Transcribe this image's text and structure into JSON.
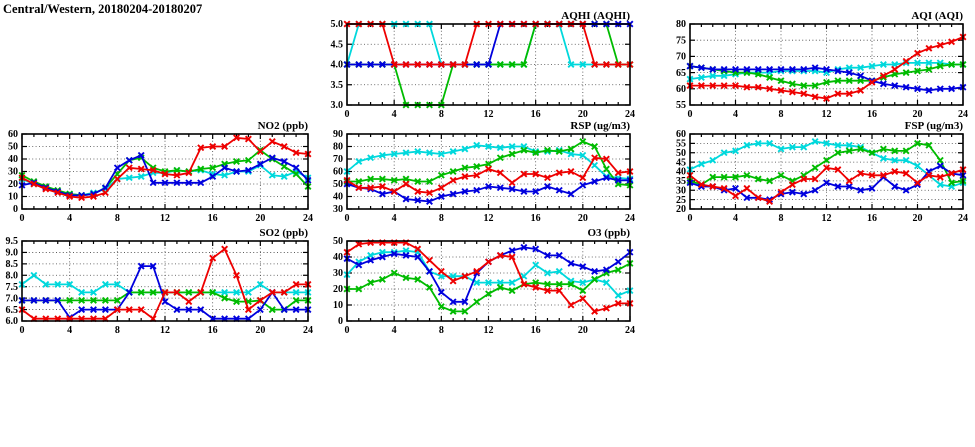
{
  "page_title": "Central/Western, 20180204-20180207",
  "series_colors": {
    "red": "#ee0000",
    "green": "#00bb00",
    "blue": "#0000dd",
    "cyan": "#00d8dc"
  },
  "chart_data": [
    {
      "id": "aqhi",
      "type": "line",
      "title": "AQHI (AQHI)",
      "xlim": [
        0,
        24
      ],
      "ylim": [
        3.0,
        5.0
      ],
      "x_start": 0,
      "x_step": 1,
      "grid": true,
      "legend": "none",
      "xticks": [
        "0",
        "4",
        "8",
        "12",
        "16",
        "20",
        "24"
      ],
      "xtick_values": [
        0,
        4,
        8,
        12,
        16,
        20,
        24
      ],
      "yticks": [
        "3.0",
        "3.5",
        "4.0",
        "4.5",
        "5.0"
      ],
      "ytick_values": [
        3.0,
        3.5,
        4.0,
        4.5,
        5.0
      ],
      "series": [
        {
          "name": "cyan",
          "values": [
            4,
            5,
            5,
            5,
            5,
            5,
            5,
            5,
            4,
            4,
            4,
            4,
            4,
            4,
            4,
            4,
            5,
            5,
            5,
            4,
            4,
            4,
            4,
            4,
            4
          ]
        },
        {
          "name": "green",
          "values": [
            4,
            4,
            4,
            4,
            4,
            3,
            3,
            3,
            3,
            4,
            4,
            4,
            4,
            4,
            4,
            4,
            5,
            5,
            5,
            5,
            5,
            5,
            5,
            4,
            4
          ]
        },
        {
          "name": "blue",
          "values": [
            4,
            4,
            4,
            4,
            4,
            4,
            4,
            4,
            4,
            4,
            4,
            4,
            4,
            5,
            5,
            5,
            5,
            5,
            5,
            5,
            5,
            5,
            5,
            5,
            5
          ]
        },
        {
          "name": "red",
          "values": [
            5,
            5,
            5,
            5,
            4,
            4,
            4,
            4,
            4,
            4,
            4,
            5,
            5,
            5,
            5,
            5,
            5,
            5,
            5,
            5,
            5,
            4,
            4,
            4,
            4
          ]
        }
      ]
    },
    {
      "id": "aqi",
      "type": "line",
      "title": "AQI (AQI)",
      "xlim": [
        0,
        24
      ],
      "ylim": [
        55,
        80
      ],
      "x_start": 0,
      "x_step": 1,
      "grid": true,
      "legend": "none",
      "xticks": [
        "0",
        "4",
        "8",
        "12",
        "16",
        "20",
        "24"
      ],
      "xtick_values": [
        0,
        4,
        8,
        12,
        16,
        20,
        24
      ],
      "yticks": [
        "55",
        "60",
        "65",
        "70",
        "75",
        "80"
      ],
      "ytick_values": [
        55,
        60,
        65,
        70,
        75,
        80
      ],
      "series": [
        {
          "name": "cyan",
          "values": [
            63,
            63.5,
            64,
            64,
            64.5,
            65,
            65,
            65,
            65.5,
            65.5,
            65.5,
            65.5,
            65,
            66,
            66.5,
            66.5,
            67,
            67.5,
            67.5,
            68,
            68,
            68,
            68,
            67.5,
            67.5
          ]
        },
        {
          "name": "green",
          "values": [
            67,
            66.5,
            66,
            65.5,
            65,
            65,
            64.5,
            63.5,
            62.5,
            61.5,
            61,
            61,
            62,
            62.5,
            62.5,
            62.5,
            62.5,
            63.5,
            64.5,
            65,
            65.5,
            66,
            67,
            67.5,
            67.5
          ]
        },
        {
          "name": "blue",
          "values": [
            67,
            66.5,
            66,
            66,
            66,
            66,
            66,
            66,
            66,
            66,
            66,
            66.5,
            66,
            65.5,
            65,
            64,
            62.5,
            61.5,
            61,
            60.5,
            60,
            59.5,
            60,
            60,
            60.5
          ]
        },
        {
          "name": "red",
          "values": [
            61,
            61,
            61,
            61,
            61,
            60.5,
            60.5,
            60,
            59.5,
            59,
            58.5,
            57.5,
            57,
            58.5,
            58.5,
            59.5,
            62,
            64,
            66,
            68.5,
            71,
            72.5,
            73.5,
            74.5,
            76
          ]
        }
      ]
    },
    {
      "id": "no2",
      "type": "line",
      "title": "NO2 (ppb)",
      "xlim": [
        0,
        24
      ],
      "ylim": [
        0,
        60
      ],
      "x_start": 0,
      "x_step": 1,
      "grid": true,
      "legend": "none",
      "xticks": [
        "0",
        "4",
        "8",
        "12",
        "16",
        "20",
        "24"
      ],
      "xtick_values": [
        0,
        4,
        8,
        12,
        16,
        20,
        24
      ],
      "yticks": [
        "0",
        "10",
        "20",
        "30",
        "40",
        "50",
        "60"
      ],
      "ytick_values": [
        0,
        10,
        20,
        30,
        40,
        50,
        60
      ],
      "series": [
        {
          "name": "cyan",
          "values": [
            24,
            20,
            17,
            14,
            12,
            11,
            13,
            16,
            24,
            25,
            26,
            29,
            29,
            31,
            30,
            31,
            28,
            27,
            30,
            30,
            35,
            27,
            26,
            30,
            25
          ]
        },
        {
          "name": "green",
          "values": [
            27,
            22,
            18,
            15,
            12,
            11,
            12,
            17,
            28,
            39,
            41,
            33,
            30,
            31,
            30,
            32,
            33,
            36,
            38,
            39,
            47,
            40,
            34,
            28,
            18
          ]
        },
        {
          "name": "blue",
          "values": [
            19,
            21,
            17,
            14,
            11,
            11,
            12,
            17,
            33,
            39,
            43,
            21,
            21,
            21,
            21,
            21,
            26,
            33,
            30,
            31,
            36,
            41,
            38,
            33,
            23
          ]
        },
        {
          "name": "red",
          "values": [
            25,
            20,
            16,
            13,
            10,
            9,
            10,
            13,
            24,
            33,
            32,
            31,
            28,
            27,
            29,
            49,
            50,
            50,
            57,
            56,
            46,
            54,
            50,
            45,
            44
          ]
        }
      ]
    },
    {
      "id": "rsp",
      "type": "line",
      "title": "RSP (ug/m3)",
      "xlim": [
        0,
        24
      ],
      "ylim": [
        30,
        90
      ],
      "x_start": 0,
      "x_step": 1,
      "grid": true,
      "legend": "none",
      "xticks": [
        "0",
        "4",
        "8",
        "12",
        "16",
        "20",
        "24"
      ],
      "xtick_values": [
        0,
        4,
        8,
        12,
        16,
        20,
        24
      ],
      "yticks": [
        "30",
        "40",
        "50",
        "60",
        "70",
        "80",
        "90"
      ],
      "ytick_values": [
        30,
        40,
        50,
        60,
        70,
        80,
        90
      ],
      "series": [
        {
          "name": "cyan",
          "values": [
            60,
            68,
            71,
            73,
            74,
            75,
            76,
            75,
            74,
            76,
            78,
            81,
            80,
            79,
            80,
            80,
            76,
            76,
            77,
            74,
            73,
            65,
            56,
            55,
            54
          ]
        },
        {
          "name": "green",
          "values": [
            52,
            52,
            54,
            54,
            53,
            54,
            52,
            52,
            57,
            60,
            63,
            64,
            66,
            71,
            74,
            77,
            75,
            77,
            76,
            78,
            84,
            80,
            62,
            50,
            49
          ]
        },
        {
          "name": "blue",
          "values": [
            50,
            47,
            46,
            42,
            44,
            38,
            37,
            36,
            40,
            42,
            44,
            45,
            48,
            47,
            46,
            44,
            44,
            48,
            45,
            42,
            49,
            52,
            55,
            53,
            53
          ]
        },
        {
          "name": "red",
          "values": [
            53,
            47,
            47,
            48,
            44,
            50,
            44,
            43,
            47,
            53,
            56,
            57,
            62,
            59,
            51,
            58,
            58,
            55,
            59,
            60,
            55,
            71,
            70,
            59,
            60
          ]
        }
      ]
    },
    {
      "id": "fsp",
      "type": "line",
      "title": "FSP (ug/m3)",
      "xlim": [
        0,
        24
      ],
      "ylim": [
        20,
        60
      ],
      "x_start": 0,
      "x_step": 1,
      "grid": true,
      "legend": "none",
      "xticks": [
        "0",
        "4",
        "8",
        "12",
        "16",
        "20",
        "24"
      ],
      "xtick_values": [
        0,
        4,
        8,
        12,
        16,
        20,
        24
      ],
      "yticks": [
        "20",
        "25",
        "30",
        "35",
        "40",
        "45",
        "50",
        "55",
        "60"
      ],
      "ytick_values": [
        20,
        25,
        30,
        35,
        40,
        45,
        50,
        55,
        60
      ],
      "series": [
        {
          "name": "cyan",
          "values": [
            41,
            44,
            46,
            50,
            51,
            54,
            55,
            55,
            52,
            53,
            53,
            56,
            55,
            54,
            54,
            53,
            50,
            47,
            46,
            46,
            43,
            38,
            33,
            32,
            34
          ]
        },
        {
          "name": "green",
          "values": [
            35,
            33,
            37,
            37,
            37,
            38,
            36,
            35,
            38,
            35,
            38,
            42,
            46,
            50,
            51,
            52,
            50,
            52,
            51,
            51,
            55,
            54,
            46,
            34,
            35
          ]
        },
        {
          "name": "blue",
          "values": [
            34,
            32,
            32,
            30,
            31,
            26,
            26,
            25,
            28,
            29,
            28,
            30,
            34,
            32,
            32,
            30,
            31,
            37,
            32,
            30,
            33,
            40,
            43,
            39,
            38
          ]
        },
        {
          "name": "red",
          "values": [
            38,
            33,
            32,
            31,
            27,
            31,
            26,
            24,
            29,
            33,
            36,
            36,
            42,
            41,
            35,
            39,
            38,
            38,
            40,
            39,
            34,
            38,
            37,
            39,
            41
          ]
        }
      ]
    },
    {
      "id": "so2",
      "type": "line",
      "title": "SO2 (ppb)",
      "xlim": [
        0,
        24
      ],
      "ylim": [
        6.0,
        9.5
      ],
      "x_start": 0,
      "x_step": 1,
      "grid": true,
      "legend": "none",
      "xticks": [
        "0",
        "4",
        "8",
        "12",
        "16",
        "20",
        "24"
      ],
      "xtick_values": [
        0,
        4,
        8,
        12,
        16,
        20,
        24
      ],
      "yticks": [
        "6.0",
        "6.5",
        "7.0",
        "7.5",
        "8.0",
        "8.5",
        "9.0",
        "9.5"
      ],
      "ytick_values": [
        6.0,
        6.5,
        7.0,
        7.5,
        8.0,
        8.5,
        9.0,
        9.5
      ],
      "series": [
        {
          "name": "cyan",
          "values": [
            7.6,
            8.0,
            7.6,
            7.6,
            7.6,
            7.25,
            7.25,
            7.6,
            7.6,
            7.25,
            7.25,
            7.25,
            7.25,
            7.25,
            7.25,
            7.25,
            7.25,
            7.25,
            7.25,
            7.25,
            7.6,
            7.25,
            7.25,
            7.25,
            7.25
          ]
        },
        {
          "name": "green",
          "values": [
            6.9,
            6.9,
            6.9,
            6.9,
            6.9,
            6.9,
            6.9,
            6.9,
            6.9,
            7.25,
            7.25,
            7.25,
            7.25,
            7.25,
            7.25,
            7.25,
            7.25,
            7.0,
            6.85,
            6.85,
            6.9,
            6.5,
            6.5,
            6.9,
            6.9
          ]
        },
        {
          "name": "blue",
          "values": [
            6.9,
            6.9,
            6.9,
            6.9,
            6.15,
            6.5,
            6.5,
            6.5,
            6.5,
            7.25,
            8.4,
            8.4,
            6.85,
            6.5,
            6.5,
            6.5,
            6.1,
            6.1,
            6.1,
            6.1,
            6.5,
            7.25,
            6.5,
            6.5,
            6.5
          ]
        },
        {
          "name": "red",
          "values": [
            6.5,
            6.1,
            6.1,
            6.1,
            6.1,
            6.1,
            6.1,
            6.1,
            6.5,
            6.5,
            6.5,
            6.1,
            7.25,
            7.25,
            6.85,
            7.25,
            8.75,
            9.15,
            8.0,
            6.5,
            6.9,
            7.25,
            7.25,
            7.6,
            7.6
          ]
        }
      ]
    },
    {
      "id": "o3",
      "type": "line",
      "title": "O3 (ppb)",
      "xlim": [
        0,
        24
      ],
      "ylim": [
        0,
        50
      ],
      "x_start": 0,
      "x_step": 1,
      "grid": true,
      "legend": "none",
      "xticks": [
        "0",
        "4",
        "8",
        "12",
        "16",
        "20",
        "24"
      ],
      "xtick_values": [
        0,
        4,
        8,
        12,
        16,
        20,
        24
      ],
      "yticks": [
        "0",
        "10",
        "20",
        "30",
        "40",
        "50"
      ],
      "ytick_values": [
        0,
        10,
        20,
        30,
        40,
        50
      ],
      "series": [
        {
          "name": "cyan",
          "values": [
            29,
            37,
            41,
            43,
            43,
            44,
            43,
            31,
            28,
            28,
            28,
            24,
            24,
            24,
            24,
            28,
            35,
            30,
            31,
            25,
            24,
            26,
            24,
            16,
            19
          ]
        },
        {
          "name": "green",
          "values": [
            20,
            20,
            24,
            26,
            30,
            27,
            26,
            21,
            9,
            6,
            6,
            12,
            17,
            21,
            19,
            23,
            24,
            23,
            23,
            23,
            19,
            26,
            30,
            32,
            36
          ]
        },
        {
          "name": "blue",
          "values": [
            39,
            35,
            38,
            40,
            42,
            41,
            40,
            31,
            18,
            12,
            12,
            30,
            37,
            41,
            44,
            46,
            45,
            41,
            41,
            36,
            34,
            31,
            32,
            37,
            43
          ]
        },
        {
          "name": "red",
          "values": [
            43,
            48,
            49,
            49,
            49,
            49,
            45,
            38,
            31,
            25,
            28,
            31,
            37,
            41,
            40,
            23,
            21,
            19,
            19,
            10,
            14,
            6,
            8,
            11,
            11
          ]
        }
      ]
    }
  ]
}
